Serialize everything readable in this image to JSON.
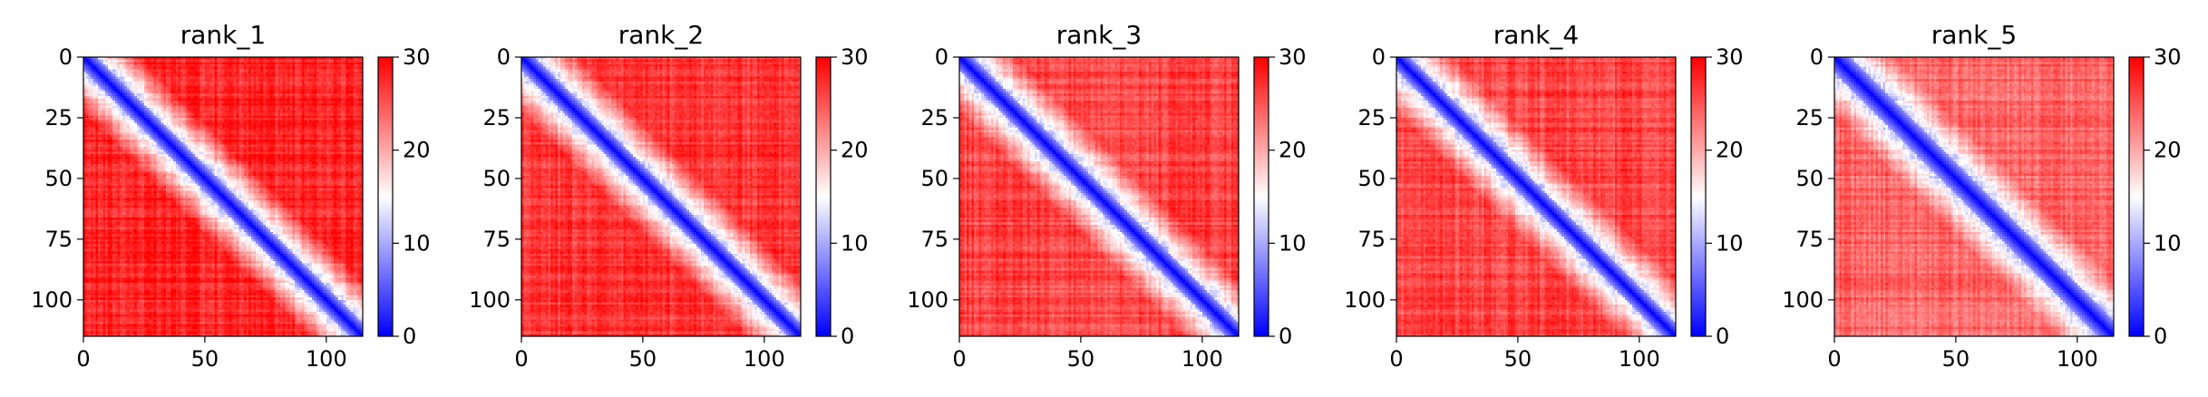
{
  "chart_data": [
    {
      "type": "heatmap",
      "title": "rank_1",
      "matrix_size": 115,
      "x_ticks": [
        "0",
        "50",
        "100"
      ],
      "y_ticks": [
        "0",
        "25",
        "50",
        "75",
        "100"
      ],
      "xlim": [
        0,
        115
      ],
      "ylim": [
        115,
        0
      ],
      "colorbar": {
        "ticks": [
          "0",
          "10",
          "20",
          "30"
        ],
        "range": [
          0,
          30
        ],
        "colormap": "bwr"
      },
      "diagonal_value": 0,
      "background_value": 28,
      "band_width": 5
    },
    {
      "type": "heatmap",
      "title": "rank_2",
      "matrix_size": 115,
      "x_ticks": [
        "0",
        "50",
        "100"
      ],
      "y_ticks": [
        "0",
        "25",
        "50",
        "75",
        "100"
      ],
      "xlim": [
        0,
        115
      ],
      "ylim": [
        115,
        0
      ],
      "colorbar": {
        "ticks": [
          "0",
          "10",
          "20",
          "30"
        ],
        "range": [
          0,
          30
        ],
        "colormap": "bwr"
      },
      "diagonal_value": 0,
      "background_value": 27,
      "band_width": 5
    },
    {
      "type": "heatmap",
      "title": "rank_3",
      "matrix_size": 115,
      "x_ticks": [
        "0",
        "50",
        "100"
      ],
      "y_ticks": [
        "0",
        "25",
        "50",
        "75",
        "100"
      ],
      "xlim": [
        0,
        115
      ],
      "ylim": [
        115,
        0
      ],
      "colorbar": {
        "ticks": [
          "0",
          "10",
          "20",
          "30"
        ],
        "range": [
          0,
          30
        ],
        "colormap": "bwr"
      },
      "diagonal_value": 0,
      "background_value": 26,
      "band_width": 5
    },
    {
      "type": "heatmap",
      "title": "rank_4",
      "matrix_size": 115,
      "x_ticks": [
        "0",
        "50",
        "100"
      ],
      "y_ticks": [
        "0",
        "25",
        "50",
        "75",
        "100"
      ],
      "xlim": [
        0,
        115
      ],
      "ylim": [
        115,
        0
      ],
      "colorbar": {
        "ticks": [
          "0",
          "10",
          "20",
          "30"
        ],
        "range": [
          0,
          30
        ],
        "colormap": "bwr"
      },
      "diagonal_value": 0,
      "background_value": 26,
      "band_width": 5
    },
    {
      "type": "heatmap",
      "title": "rank_5",
      "matrix_size": 115,
      "x_ticks": [
        "0",
        "50",
        "100"
      ],
      "y_ticks": [
        "0",
        "25",
        "50",
        "75",
        "100"
      ],
      "xlim": [
        0,
        115
      ],
      "ylim": [
        115,
        0
      ],
      "colorbar": {
        "ticks": [
          "0",
          "10",
          "20",
          "30"
        ],
        "range": [
          0,
          30
        ],
        "colormap": "bwr"
      },
      "diagonal_value": 0,
      "background_value": 24,
      "band_width": 6
    }
  ]
}
